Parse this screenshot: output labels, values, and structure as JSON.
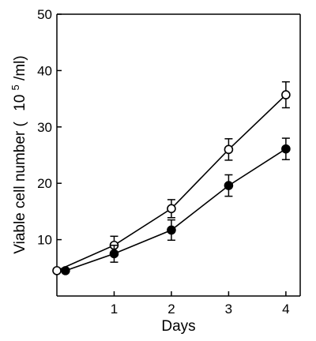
{
  "chart_data": {
    "type": "line",
    "xlabel": "Days",
    "ylabel_main": "Viable cell number (",
    "ylabel_unit_base": "10",
    "ylabel_unit_exp": "5",
    "ylabel_unit_tail": "/ml)",
    "xlim": [
      0,
      4.25
    ],
    "ylim": [
      0,
      50
    ],
    "x_ticks": [
      1,
      2,
      3,
      4
    ],
    "y_ticks": [
      10,
      20,
      30,
      40,
      50
    ],
    "series": [
      {
        "marker": "open-circle",
        "x": [
          0,
          1,
          2,
          3,
          4
        ],
        "y": [
          4.5,
          9,
          15.5,
          26,
          35.7
        ],
        "err": [
          0,
          1.6,
          1.6,
          1.9,
          2.3
        ]
      },
      {
        "marker": "filled-circle",
        "x": [
          0.15,
          1,
          2,
          3,
          4
        ],
        "y": [
          4.5,
          7.5,
          11.7,
          19.6,
          26.1
        ],
        "err": [
          0,
          1.5,
          1.8,
          1.9,
          1.9
        ]
      }
    ]
  }
}
